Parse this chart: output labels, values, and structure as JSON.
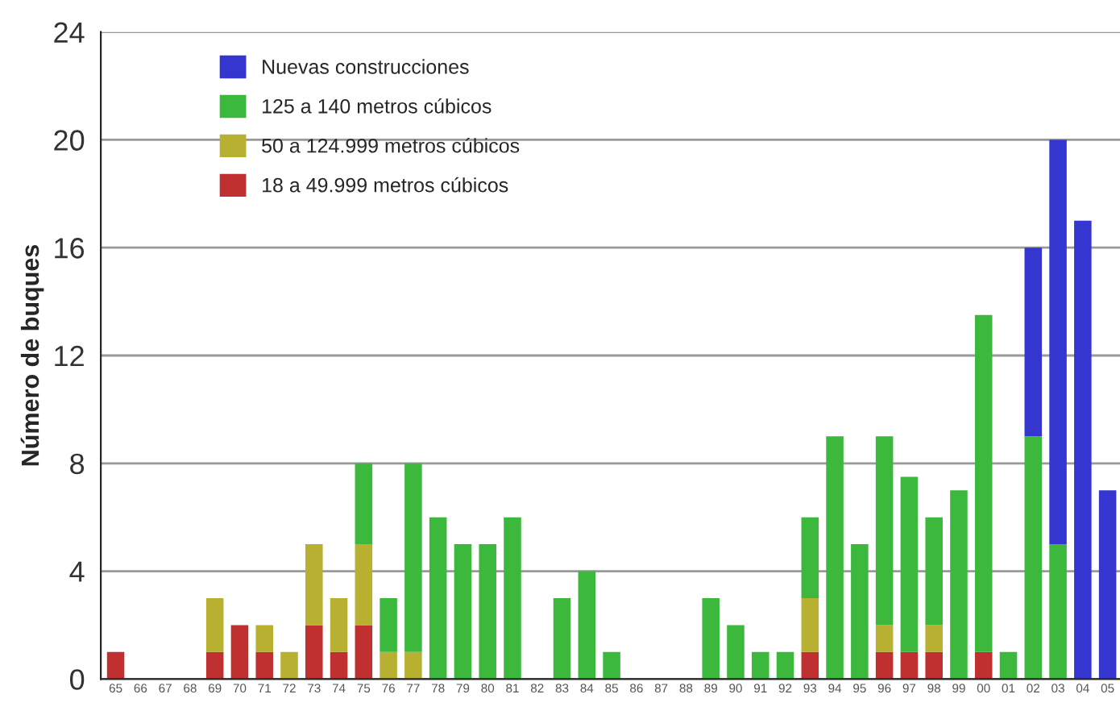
{
  "chart_data": {
    "type": "bar",
    "stacked": true,
    "ylabel": "Número de buques",
    "categories": [
      "65",
      "66",
      "67",
      "68",
      "69",
      "70",
      "71",
      "72",
      "73",
      "74",
      "75",
      "76",
      "77",
      "78",
      "79",
      "80",
      "81",
      "82",
      "83",
      "84",
      "85",
      "86",
      "87",
      "88",
      "89",
      "90",
      "91",
      "92",
      "93",
      "94",
      "95",
      "96",
      "97",
      "98",
      "99",
      "00",
      "01",
      "02",
      "03",
      "04",
      "05"
    ],
    "series": [
      {
        "name": "18 a 49.999 metros cúbicos",
        "color": "#c03030",
        "values": [
          1,
          null,
          null,
          null,
          1,
          2,
          1,
          null,
          2,
          1,
          2,
          null,
          null,
          null,
          null,
          null,
          null,
          null,
          null,
          null,
          null,
          null,
          null,
          null,
          null,
          null,
          null,
          null,
          1,
          null,
          null,
          1,
          1,
          1,
          null,
          1,
          null,
          null,
          null,
          null,
          null
        ]
      },
      {
        "name": "50 a 124.999 metros cúbicos",
        "color": "#b8b030",
        "values": [
          null,
          null,
          null,
          null,
          2,
          null,
          1,
          1,
          3,
          2,
          3,
          1,
          1,
          null,
          null,
          null,
          null,
          null,
          null,
          null,
          null,
          null,
          null,
          null,
          null,
          null,
          null,
          null,
          2,
          null,
          null,
          1,
          null,
          1,
          null,
          null,
          null,
          null,
          null,
          null,
          null
        ]
      },
      {
        "name": "125 a 140 metros cúbicos",
        "color": "#3cb83c",
        "values": [
          null,
          null,
          null,
          null,
          null,
          null,
          null,
          null,
          null,
          null,
          3,
          2,
          7,
          6,
          5,
          5,
          6,
          null,
          3,
          4,
          1,
          null,
          null,
          null,
          3,
          2,
          1,
          1,
          3,
          9,
          5,
          7,
          6.5,
          4,
          7,
          12.5,
          1,
          9,
          5,
          null,
          null
        ]
      },
      {
        "name": "Nuevas construcciones",
        "color": "#3535d0",
        "values": [
          null,
          null,
          null,
          null,
          null,
          null,
          null,
          null,
          null,
          null,
          null,
          null,
          null,
          null,
          null,
          null,
          null,
          null,
          null,
          null,
          null,
          null,
          null,
          null,
          null,
          null,
          null,
          null,
          null,
          null,
          null,
          null,
          null,
          null,
          null,
          null,
          null,
          7,
          15,
          17,
          7
        ]
      }
    ],
    "ylim": [
      0,
      24
    ],
    "yticks": [
      0,
      4,
      8,
      12,
      16,
      20,
      24
    ],
    "grid": "y",
    "legend": "top left"
  }
}
